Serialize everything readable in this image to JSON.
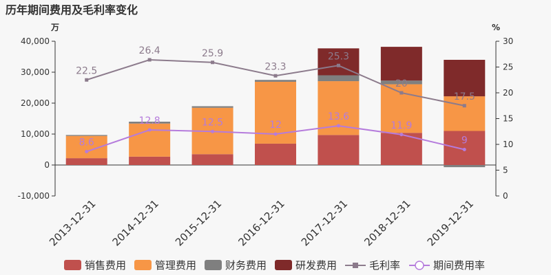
{
  "chart_data": {
    "type": "bar",
    "stacked": true,
    "title": "历年期间费用及毛利率变化",
    "left_unit": "万",
    "right_unit": "%",
    "categories": [
      "2013-12-31",
      "2014-12-31",
      "2015-12-31",
      "2016-12-31",
      "2017-12-31",
      "2018-12-31",
      "2019-12-31"
    ],
    "left_axis": {
      "min": -10000,
      "max": 40000,
      "ticks": [
        -10000,
        0,
        10000,
        20000,
        30000,
        40000
      ],
      "tick_labels": [
        "-10,000",
        "0",
        "10,000",
        "20,000",
        "30,000",
        "40,000"
      ]
    },
    "right_axis": {
      "min": 0,
      "max": 30,
      "ticks": [
        0,
        5,
        10,
        15,
        20,
        25,
        30
      ],
      "tick_labels": [
        "0",
        "5",
        "10",
        "15",
        "20",
        "25",
        "30"
      ]
    },
    "bar_series": [
      {
        "name": "销售费用",
        "color": "#c0504d",
        "values": [
          2200,
          2700,
          3500,
          6900,
          9700,
          10400,
          11000
        ]
      },
      {
        "name": "管理费用",
        "color": "#f79646",
        "values": [
          7200,
          10700,
          15000,
          20000,
          17400,
          15700,
          11200
        ]
      },
      {
        "name": "财务费用",
        "color": "#7f7f7f",
        "values": [
          300,
          600,
          500,
          600,
          1900,
          1200,
          -700
        ]
      },
      {
        "name": "研发费用",
        "color": "#7f2a2a",
        "values": [
          0,
          0,
          0,
          0,
          8700,
          10900,
          11800
        ]
      }
    ],
    "line_series": [
      {
        "name": "毛利率",
        "color": "#8c7b8c",
        "marker": "square",
        "values": [
          22.5,
          26.4,
          25.9,
          23.3,
          25.3,
          20,
          17.5
        ],
        "labels": [
          "22.5",
          "26.4",
          "25.9",
          "23.3",
          "25.3",
          "20",
          "17.5"
        ]
      },
      {
        "name": "期间费用率",
        "color": "#b57bdc",
        "marker": "circle",
        "values": [
          8.6,
          12.8,
          12.5,
          12,
          13.6,
          11.9,
          9
        ],
        "labels": [
          "8.6",
          "12.8",
          "12.5",
          "12",
          "13.6",
          "11.9",
          "9"
        ]
      }
    ],
    "legend_position": "bottom",
    "grid": false
  }
}
